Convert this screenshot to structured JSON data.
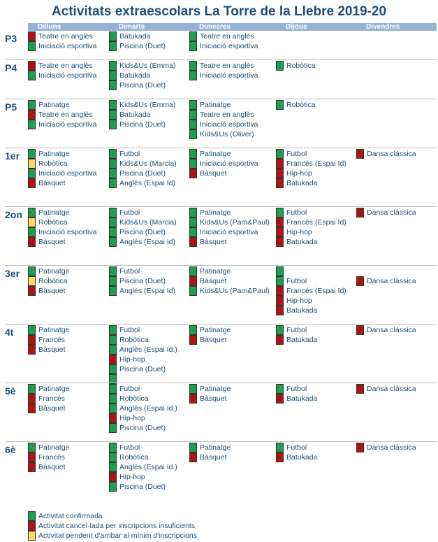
{
  "title": "Activitats extraescolars La Torre de la Llebre 2019-20",
  "colors": {
    "confirmed": "#1e9e50",
    "cancelled": "#b31212",
    "pending": "#ffd966",
    "header_band": "#95b3d7",
    "text": "#1f4e79"
  },
  "days": [
    "Dilluns",
    "Dimarts",
    "Dimecres",
    "Dijous",
    "Divendres"
  ],
  "courses": [
    {
      "name": "P3",
      "days": [
        [
          {
            "name": "Teatre en anglès",
            "status": "cancelled"
          },
          {
            "name": "Iniciació esportiva",
            "status": "confirmed"
          }
        ],
        [
          {
            "name": "Batukada",
            "status": "confirmed"
          },
          {
            "name": "Piscina (Duet)",
            "status": "confirmed"
          }
        ],
        [
          {
            "name": "Teatre en anglès",
            "status": "confirmed"
          },
          {
            "name": "Iniciació esportiva",
            "status": "confirmed"
          }
        ],
        [],
        []
      ]
    },
    {
      "name": "P4",
      "days": [
        [
          {
            "name": "Teatre en anglès",
            "status": "cancelled"
          },
          {
            "name": "Iniciació esportiva",
            "status": "confirmed"
          }
        ],
        [
          {
            "name": "Kids&Us (Emma)",
            "status": "confirmed"
          },
          {
            "name": "Batukada",
            "status": "confirmed"
          },
          {
            "name": "Piscina (Duet)",
            "status": "confirmed"
          }
        ],
        [
          {
            "name": "Teatre en anglès",
            "status": "confirmed"
          },
          {
            "name": "Iniciació esportiva",
            "status": "confirmed"
          }
        ],
        [
          {
            "name": "Robòtica",
            "status": "confirmed"
          }
        ],
        []
      ]
    },
    {
      "name": "P5",
      "days": [
        [
          {
            "name": "Patinatge",
            "status": "confirmed"
          },
          {
            "name": "Teatre en anglès",
            "status": "cancelled"
          },
          {
            "name": "Iniciació esportiva",
            "status": "confirmed"
          }
        ],
        [
          {
            "name": "Kids&Us (Emma)",
            "status": "confirmed"
          },
          {
            "name": "Batukada",
            "status": "confirmed"
          },
          {
            "name": "Piscina (Duet)",
            "status": "confirmed"
          }
        ],
        [
          {
            "name": "Patinatge",
            "status": "confirmed"
          },
          {
            "name": "Teatre en anglès",
            "status": "confirmed"
          },
          {
            "name": "Iniciació esportiva",
            "status": "confirmed"
          },
          {
            "name": "Kids&Us (Oliver)",
            "status": "confirmed"
          }
        ],
        [
          {
            "name": "Robòtica",
            "status": "confirmed"
          }
        ],
        []
      ]
    },
    {
      "name": "1er",
      "days": [
        [
          {
            "name": "Patinatge",
            "status": "confirmed"
          },
          {
            "name": "Robòtica",
            "status": "pending"
          },
          {
            "name": "Iniciació esportiva",
            "status": "confirmed"
          },
          {
            "name": "Bàsquet",
            "status": "cancelled"
          }
        ],
        [
          {
            "name": "Futbol",
            "status": "confirmed"
          },
          {
            "name": "Kids&Us (Marcia)",
            "status": "confirmed"
          },
          {
            "name": "Piscina (Duet)",
            "status": "confirmed"
          },
          {
            "name": "Anglès (Espai Id)",
            "status": "confirmed"
          }
        ],
        [
          {
            "name": "Patinatge",
            "status": "confirmed"
          },
          {
            "name": "Iniciació esportiva",
            "status": "confirmed"
          },
          {
            "name": "Bàsquet",
            "status": "cancelled"
          }
        ],
        [
          {
            "name": "Futbol",
            "status": "confirmed"
          },
          {
            "name": "Francés (Espai Id)",
            "status": "cancelled"
          },
          {
            "name": "Hip-hop",
            "status": "cancelled"
          },
          {
            "name": "Batukada",
            "status": "cancelled"
          }
        ],
        [
          {
            "name": "Dansa clàssica",
            "status": "cancelled"
          }
        ]
      ]
    },
    {
      "name": "2on",
      "days": [
        [
          {
            "name": "Patinatge",
            "status": "confirmed"
          },
          {
            "name": "Robòtica",
            "status": "pending"
          },
          {
            "name": "Iniciació esportiva",
            "status": "confirmed"
          },
          {
            "name": "Bàsquet",
            "status": "cancelled"
          }
        ],
        [
          {
            "name": "Futbol",
            "status": "confirmed"
          },
          {
            "name": "Kids&Us (Marcia)",
            "status": "confirmed"
          },
          {
            "name": "Piscina (Duet)",
            "status": "confirmed"
          },
          {
            "name": "Anglès (Espai Id)",
            "status": "confirmed"
          }
        ],
        [
          {
            "name": "Patinatge",
            "status": "confirmed"
          },
          {
            "name": "Kids&Us (Pam&Paul)",
            "status": "confirmed"
          },
          {
            "name": "Iniciació esportiva",
            "status": "confirmed"
          },
          {
            "name": "Bàsquet",
            "status": "cancelled"
          }
        ],
        [
          {
            "name": "Futbol",
            "status": "confirmed"
          },
          {
            "name": "Francés (Espai Id)",
            "status": "cancelled"
          },
          {
            "name": "Hip-hop",
            "status": "cancelled"
          },
          {
            "name": "Batukada",
            "status": "cancelled"
          }
        ],
        [
          {
            "name": "Dansa clàssica",
            "status": "cancelled"
          }
        ]
      ]
    },
    {
      "name": "3er",
      "days": [
        [
          {
            "name": "Patinatge",
            "status": "confirmed"
          },
          {
            "name": "Robòtica",
            "status": "pending"
          },
          {
            "name": "Bàsquet",
            "status": "cancelled"
          }
        ],
        [
          {
            "name": "Futbol",
            "status": "confirmed"
          },
          {
            "name": "Piscina (Duet)",
            "status": "confirmed"
          },
          {
            "name": "Anglès (Espai Id)",
            "status": "confirmed"
          }
        ],
        [
          {
            "name": "Patinatge",
            "status": "confirmed"
          },
          {
            "name": "Bàsquet",
            "status": "cancelled"
          },
          {
            "name": "Kids&Us (Pam&Paul)",
            "status": "confirmed"
          }
        ],
        [
          {
            "name": "",
            "status": "confirmed"
          },
          {
            "name": "Futbol",
            "status": "confirmed"
          },
          {
            "name": "Francés (Espai Id)",
            "status": "cancelled"
          },
          {
            "name": "Hip-hop",
            "status": "cancelled"
          },
          {
            "name": "Batukada",
            "status": "cancelled"
          }
        ],
        [
          {
            "name": "",
            "status": "none"
          },
          {
            "name": "Dansa clàssica",
            "status": "cancelled"
          }
        ]
      ]
    },
    {
      "name": "4t",
      "days": [
        [
          {
            "name": "Patinatge",
            "status": "confirmed"
          },
          {
            "name": "Francés",
            "status": "cancelled"
          },
          {
            "name": "Bàsquet",
            "status": "cancelled"
          }
        ],
        [
          {
            "name": "Futbol",
            "status": "confirmed"
          },
          {
            "name": "Robòtica",
            "status": "confirmed"
          },
          {
            "name": "Anglès (Espai Id.)",
            "status": "confirmed"
          },
          {
            "name": "Hip-hop",
            "status": "cancelled"
          },
          {
            "name": "Piscina (Duet)",
            "status": "confirmed"
          },
          {
            "name": "",
            "status": "confirmed"
          }
        ],
        [
          {
            "name": "Patinatge",
            "status": "confirmed"
          },
          {
            "name": "Bàsquet",
            "status": "cancelled"
          }
        ],
        [
          {
            "name": "Futbol",
            "status": "confirmed"
          },
          {
            "name": "Batukada",
            "status": "cancelled"
          }
        ],
        [
          {
            "name": "Dansa clàssica",
            "status": "cancelled"
          }
        ]
      ]
    },
    {
      "name": "5è",
      "days": [
        [
          {
            "name": "Patinatge",
            "status": "confirmed"
          },
          {
            "name": "Francés",
            "status": "cancelled"
          },
          {
            "name": "Bàsquet",
            "status": "cancelled"
          }
        ],
        [
          {
            "name": "Futbol",
            "status": "confirmed"
          },
          {
            "name": "Robòtica",
            "status": "confirmed"
          },
          {
            "name": "Anglès (Espai Id.)",
            "status": "confirmed"
          },
          {
            "name": "Hip-hop",
            "status": "cancelled"
          },
          {
            "name": "Piscina (Duet)",
            "status": "confirmed"
          }
        ],
        [
          {
            "name": "Patinatge",
            "status": "confirmed"
          },
          {
            "name": "Bàsquet",
            "status": "cancelled"
          }
        ],
        [
          {
            "name": "Futbol",
            "status": "confirmed"
          },
          {
            "name": "Batukada",
            "status": "cancelled"
          }
        ],
        [
          {
            "name": "Dansa clàssica",
            "status": "cancelled"
          }
        ]
      ]
    },
    {
      "name": "6è",
      "days": [
        [
          {
            "name": "Patinatge",
            "status": "confirmed"
          },
          {
            "name": "Francés",
            "status": "cancelled"
          },
          {
            "name": "Bàsquet",
            "status": "cancelled"
          }
        ],
        [
          {
            "name": "Futbol",
            "status": "confirmed"
          },
          {
            "name": "Robòtica",
            "status": "confirmed"
          },
          {
            "name": "Anglès (Espai Id.)",
            "status": "confirmed"
          },
          {
            "name": "Hip-hop",
            "status": "cancelled"
          },
          {
            "name": "Piscina (Duet)",
            "status": "confirmed"
          }
        ],
        [
          {
            "name": "Patinatge",
            "status": "confirmed"
          },
          {
            "name": "Bàsquet",
            "status": "cancelled"
          }
        ],
        [
          {
            "name": "Futbol",
            "status": "confirmed"
          },
          {
            "name": "Batukada",
            "status": "cancelled"
          }
        ],
        [
          {
            "name": "Dansa clàssica",
            "status": "cancelled"
          }
        ]
      ]
    }
  ],
  "legend": [
    {
      "label": "Activitat confirmada",
      "status": "confirmed"
    },
    {
      "label": "Activitat cancel·lada per inscripcions insuficients",
      "status": "cancelled"
    },
    {
      "label": "Activitat pendent d'arribar al mínim d'inscripcions",
      "status": "pending"
    }
  ]
}
